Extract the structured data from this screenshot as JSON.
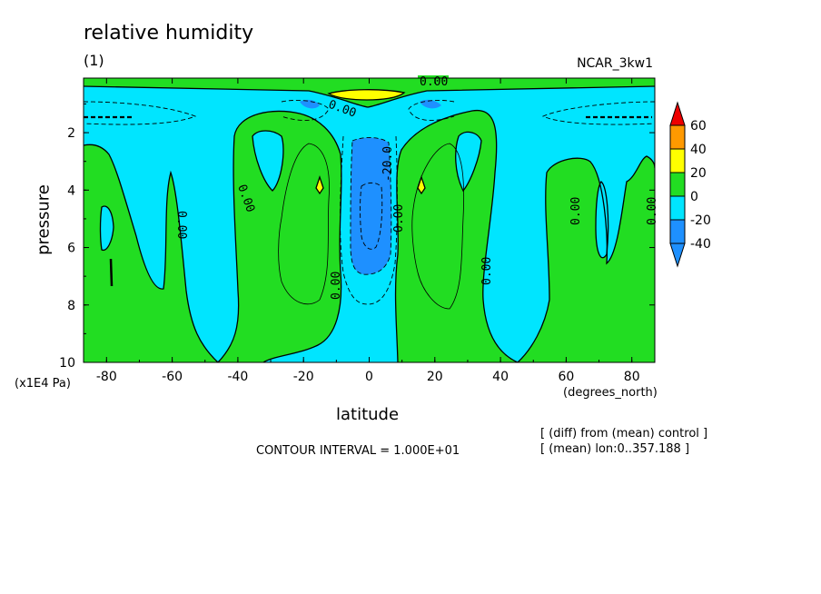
{
  "chart_data": {
    "type": "contour",
    "title": "relative humidity",
    "subtitle": "(1)",
    "model": "NCAR_3kw1",
    "xlabel": "latitude",
    "x_units": "(degrees_north)",
    "ylabel": "pressure",
    "y_units": "(x1E4 Pa)",
    "xlim": [
      -87,
      87
    ],
    "ylim": [
      10,
      0.1
    ],
    "xticks": [
      -80,
      -60,
      -40,
      -20,
      0,
      20,
      40,
      60,
      80
    ],
    "yticks": [
      2,
      4,
      6,
      8,
      10
    ],
    "contour_interval_text": "CONTOUR INTERVAL = 1.000E+01",
    "notes": [
      "[ (diff) from (mean) control ]",
      "[ (mean) lon:0..357.188 ]"
    ],
    "colorbar": {
      "levels": [
        -40,
        -20,
        0,
        20,
        40,
        60
      ],
      "colors": [
        "#1e90ff",
        "#00e5ff",
        "#22dd22",
        "#ffff00",
        "#ff9900",
        "#ee0000"
      ]
    },
    "contour_labels": [
      "0.00",
      "0.00",
      "0.00",
      "0.00",
      "0.00",
      "0.00",
      "0.00",
      "0.00",
      "0.00",
      "0.00",
      "-20.0"
    ],
    "regions": {
      "neg_0_20": "tropical column and high-latitude upper troposphere",
      "pos_0_20": "subtropical columns and polar lower troposphere",
      "neg_20_40": "equatorial column 2-7 x1E4 Pa",
      "pos_20_40": "near 0.8 x1E4 Pa at equator"
    }
  }
}
